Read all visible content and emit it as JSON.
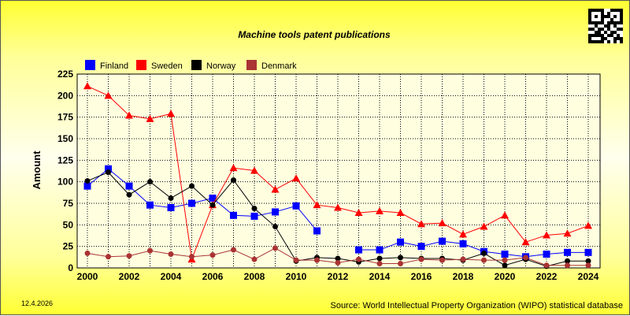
{
  "chart_data": {
    "type": "line",
    "title": "Machine tools patent publications",
    "ylabel": "Amount",
    "xlabel": "",
    "ylim": [
      0,
      225
    ],
    "yticks": [
      0,
      25,
      50,
      75,
      100,
      125,
      150,
      175,
      200,
      225
    ],
    "xlim": [
      2000,
      2024
    ],
    "xticks": [
      2000,
      2002,
      2004,
      2006,
      2008,
      2010,
      2012,
      2014,
      2016,
      2018,
      2020,
      2022,
      2024
    ],
    "grid": true,
    "legend": "top-left",
    "x": [
      2000,
      2001,
      2002,
      2003,
      2004,
      2005,
      2006,
      2007,
      2008,
      2009,
      2010,
      2011,
      2012,
      2013,
      2014,
      2015,
      2016,
      2017,
      2018,
      2019,
      2020,
      2021,
      2022,
      2023,
      2024
    ],
    "series": [
      {
        "name": "Finland",
        "color": "#0000ff",
        "marker": "square",
        "values": [
          95,
          115,
          95,
          73,
          70,
          75,
          81,
          61,
          60,
          65,
          72,
          43,
          null,
          21,
          21,
          30,
          25,
          31,
          28,
          19,
          16,
          13,
          16,
          18,
          18
        ]
      },
      {
        "name": "Sweden",
        "color": "#ff0000",
        "marker": "triangle",
        "values": [
          211,
          200,
          177,
          173,
          179,
          10,
          73,
          116,
          113,
          91,
          104,
          73,
          70,
          64,
          66,
          64,
          51,
          52,
          39,
          48,
          61,
          30,
          38,
          40,
          49
        ]
      },
      {
        "name": "Norway",
        "color": "#000000",
        "marker": "circle",
        "values": [
          101,
          111,
          85,
          100,
          81,
          95,
          73,
          102,
          69,
          48,
          8,
          12,
          11,
          7,
          11,
          12,
          11,
          11,
          9,
          17,
          3,
          10,
          2,
          8,
          8
        ]
      },
      {
        "name": "Denmark",
        "color": "#aa3333",
        "marker": "circle",
        "values": [
          17,
          13,
          14,
          20,
          16,
          13,
          15,
          21,
          10,
          23,
          9,
          9,
          6,
          10,
          5,
          5,
          10,
          9,
          10,
          9,
          9,
          12,
          3,
          3,
          3
        ]
      }
    ]
  },
  "date": "12.4.2026",
  "source": "Source: World Intellectual Property Organization (WIPO) statistical database",
  "qr_icon": "qr-code-icon"
}
